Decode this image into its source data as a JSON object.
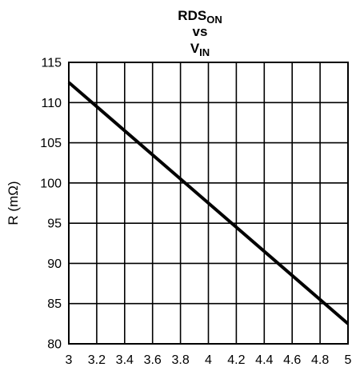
{
  "chart_data": {
    "type": "line",
    "title_main": "RDS",
    "title_sub": "ON",
    "title_vs": "vs",
    "title_v": "V",
    "title_v_sub": "IN",
    "xlabel": "",
    "ylabel": "R (mΩ)",
    "xlim": [
      3,
      5
    ],
    "ylim": [
      80,
      115
    ],
    "grid": true,
    "x_ticks": [
      3,
      3.2,
      3.4,
      3.6,
      3.8,
      4,
      4.2,
      4.4,
      4.6,
      4.8,
      5
    ],
    "x_tick_labels": [
      "3",
      "3.2",
      "3.4",
      "3.6",
      "3.8",
      "4",
      "4.2",
      "4.4",
      "4.6",
      "4.8",
      "5"
    ],
    "y_ticks": [
      80,
      85,
      90,
      95,
      100,
      105,
      110,
      115
    ],
    "y_tick_labels": [
      "80",
      "85",
      "90",
      "95",
      "100",
      "105",
      "110",
      "115"
    ],
    "series": [
      {
        "x": [
          3.0,
          5.0
        ],
        "y": [
          112.5,
          82.5
        ]
      }
    ]
  }
}
